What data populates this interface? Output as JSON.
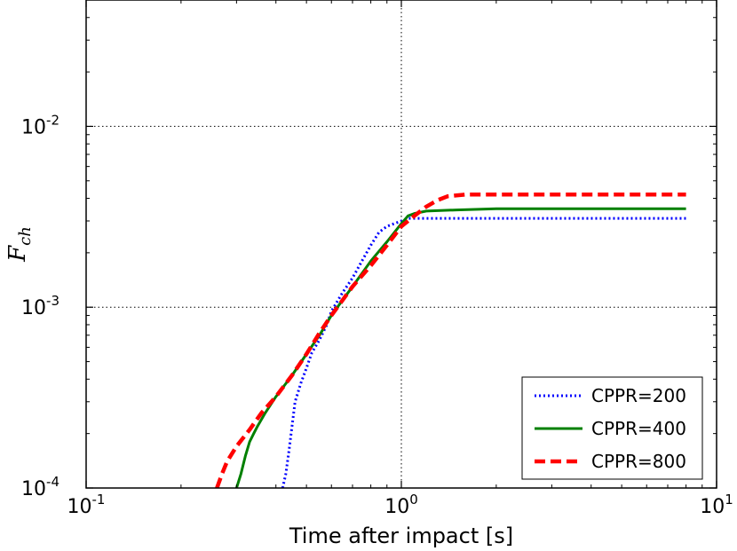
{
  "chart_data": {
    "type": "line",
    "scale": {
      "x": "log",
      "y": "log"
    },
    "xlabel": "Time after impact [s]",
    "ylabel_base": "F",
    "ylabel_sub": "ch",
    "xlim": [
      0.1,
      10
    ],
    "ylim": [
      0.0001,
      0.05
    ],
    "xticks": [
      {
        "value": 0.1,
        "base": "10",
        "exp": "-1"
      },
      {
        "value": 1,
        "base": "10",
        "exp": "0"
      },
      {
        "value": 10,
        "base": "10",
        "exp": "1"
      }
    ],
    "yticks": [
      {
        "value": 0.0001,
        "base": "10",
        "exp": "-4"
      },
      {
        "value": 0.001,
        "base": "10",
        "exp": "-3"
      },
      {
        "value": 0.01,
        "base": "10",
        "exp": "-2"
      }
    ],
    "grid": true,
    "legend_position": "lower-right",
    "series": [
      {
        "name": "CPPR=200",
        "color": "#0000ff",
        "style": "dotted",
        "x": [
          0.42,
          0.43,
          0.44,
          0.45,
          0.46,
          0.48,
          0.5,
          0.52,
          0.55,
          0.58,
          0.6,
          0.65,
          0.7,
          0.75,
          0.8,
          0.85,
          0.9,
          0.95,
          1.0,
          1.05,
          1.1,
          1.5,
          2,
          4,
          8
        ],
        "y": [
          0.0001,
          0.00012,
          0.00016,
          0.00022,
          0.0003,
          0.00038,
          0.00046,
          0.00056,
          0.00066,
          0.0008,
          0.00095,
          0.0012,
          0.00145,
          0.0018,
          0.0022,
          0.0026,
          0.0028,
          0.0029,
          0.003,
          0.0031,
          0.0031,
          0.0031,
          0.0031,
          0.0031,
          0.0031
        ]
      },
      {
        "name": "CPPR=400",
        "color": "#008000",
        "style": "solid",
        "x": [
          0.3,
          0.31,
          0.32,
          0.33,
          0.34,
          0.35,
          0.37,
          0.4,
          0.45,
          0.5,
          0.55,
          0.6,
          0.7,
          0.8,
          0.9,
          1.0,
          1.05,
          1.1,
          1.2,
          1.5,
          2,
          4,
          8
        ],
        "y": [
          0.0001,
          0.00012,
          0.00015,
          0.00018,
          0.0002,
          0.00022,
          0.00026,
          0.00032,
          0.00042,
          0.00055,
          0.0007,
          0.0009,
          0.0013,
          0.0018,
          0.0023,
          0.0029,
          0.0032,
          0.0033,
          0.0034,
          0.00345,
          0.0035,
          0.0035,
          0.0035
        ]
      },
      {
        "name": "CPPR=800",
        "color": "#ff0000",
        "style": "dashed",
        "x": [
          0.26,
          0.27,
          0.28,
          0.3,
          0.33,
          0.36,
          0.4,
          0.45,
          0.5,
          0.55,
          0.6,
          0.7,
          0.8,
          0.9,
          1.0,
          1.1,
          1.2,
          1.3,
          1.4,
          1.6,
          2,
          4,
          8
        ],
        "y": [
          0.0001,
          0.00012,
          0.00014,
          0.00017,
          0.00021,
          0.00026,
          0.00032,
          0.00042,
          0.00055,
          0.00072,
          0.0009,
          0.0013,
          0.0017,
          0.0022,
          0.0028,
          0.0032,
          0.0036,
          0.0039,
          0.0041,
          0.0042,
          0.0042,
          0.0042,
          0.0042
        ]
      }
    ]
  }
}
